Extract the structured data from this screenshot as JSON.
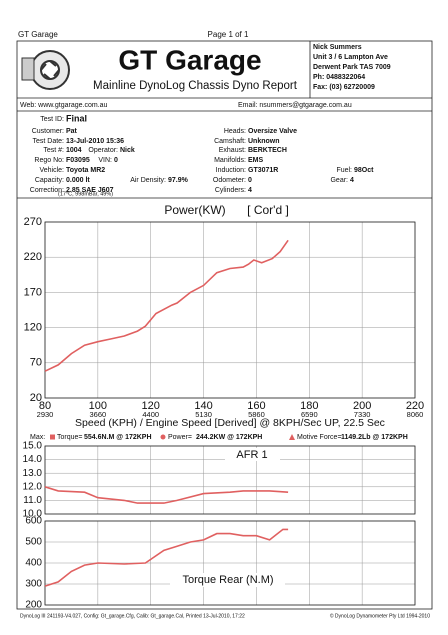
{
  "header": {
    "company": "GT Garage",
    "page": "Page 1 of 1",
    "title": "GT Garage",
    "subtitle": "Mainline DynoLog Chassis Dyno Report",
    "address": [
      "Nick Summers",
      "Unit 3 / 6 Lampton Ave",
      "Derwent Park TAS 7009",
      "Ph: 0488322064",
      "Fax: (03) 62720009"
    ],
    "web": "Web: www.gtgarage.com.au",
    "email": "Email: nsummers@gtgarage.com.au"
  },
  "info": [
    [
      "Test ID:",
      "Final"
    ],
    [
      "Customer:",
      "Pat"
    ],
    [
      "Test Date:",
      "13-Jul-2010 15:36"
    ],
    [
      "Test #:",
      "1004"
    ],
    [
      "Operator:",
      "Nick"
    ],
    [
      "Rego No:",
      "F03095"
    ],
    [
      "VIN:",
      "0"
    ],
    [
      "Vehicle:",
      "Toyota MR2"
    ],
    [
      "Capacity:",
      "0.000 lt"
    ],
    [
      "Air Density:",
      "97.9%"
    ],
    [
      "Correction:",
      "2.85 SAE J607"
    ],
    [
      "Heads:",
      "Oversize Valve"
    ],
    [
      "Camshaft:",
      "Unknown"
    ],
    [
      "Exhaust:",
      "BERKTECH"
    ],
    [
      "Manifolds:",
      "EMS"
    ],
    [
      "Induction:",
      "GT3071R"
    ],
    [
      "Odometer:",
      "0"
    ],
    [
      "Cylinders:",
      "4"
    ],
    [
      "Fuel:",
      "98Oct"
    ],
    [
      "Gear:",
      "4"
    ]
  ],
  "conditions": "(17°C, 998mBar, 49%)",
  "max": {
    "label": "Max:",
    "items": [
      {
        "name": "Torque=",
        "value": "554.6N.M @ 172KPH"
      },
      {
        "name": "Power=",
        "value": "244.2KW @ 172KPH"
      },
      {
        "name": "Motive Force=",
        "value": "1149.2Lb @ 172KPH"
      }
    ]
  },
  "chart_data": [
    {
      "type": "line",
      "title": "Power(KW)",
      "subtitle": "[ Cor'd ]",
      "x_label": "Speed (KPH) / Engine Speed [Derived] @ 8KPH/Sec UP, 22.5 Sec",
      "xlim": [
        80,
        220
      ],
      "xticks": [
        80,
        100,
        120,
        140,
        160,
        180,
        200,
        220
      ],
      "secondary_x_labels": [
        "2930",
        "3660",
        "4400",
        "5130",
        "5860",
        "6590",
        "7330",
        "8060"
      ],
      "ylim": [
        20,
        270
      ],
      "yticks": [
        20,
        70,
        120,
        170,
        220,
        270
      ],
      "grid": true,
      "x": [
        80,
        85,
        90,
        95,
        100,
        105,
        110,
        115,
        118,
        122,
        128,
        130,
        135,
        140,
        145,
        150,
        155,
        157,
        159,
        162,
        166,
        169,
        172
      ],
      "series": [
        {
          "name": "Power",
          "color": "#e06060",
          "values": [
            58,
            67,
            83,
            95,
            100,
            104,
            108,
            115,
            122,
            140,
            152,
            155,
            170,
            180,
            198,
            204,
            206,
            210,
            216,
            212,
            218,
            228,
            244
          ]
        }
      ]
    },
    {
      "type": "line",
      "title": "AFR 1",
      "xlim": [
        80,
        220
      ],
      "ylim": [
        10,
        15
      ],
      "yticks": [
        {
          "value": 10,
          "label": "10.0"
        },
        {
          "value": 11,
          "label": "11.0"
        },
        {
          "value": 12,
          "label": "12.0"
        },
        {
          "value": 13,
          "label": "13.0"
        },
        {
          "value": 14,
          "label": "14.0"
        },
        {
          "value": 15,
          "label": "15.0"
        }
      ],
      "grid": true,
      "x": [
        80,
        85,
        95,
        100,
        110,
        115,
        125,
        130,
        140,
        150,
        155,
        165,
        172
      ],
      "series": [
        {
          "name": "AFR 1",
          "color": "#e06060",
          "values": [
            12.0,
            11.7,
            11.6,
            11.2,
            11.0,
            10.8,
            10.8,
            11.0,
            11.5,
            11.6,
            11.7,
            11.7,
            11.6
          ]
        }
      ]
    },
    {
      "type": "line",
      "title": "Torque Rear (N.M)",
      "xlim": [
        80,
        220
      ],
      "ylim": [
        200,
        600
      ],
      "yticks": [
        200,
        300,
        400,
        500,
        600
      ],
      "grid": true,
      "x": [
        80,
        85,
        90,
        95,
        100,
        110,
        118,
        125,
        130,
        135,
        140,
        145,
        150,
        155,
        160,
        165,
        170,
        172
      ],
      "series": [
        {
          "name": "Torque Rear",
          "color": "#e06060",
          "values": [
            290,
            310,
            360,
            390,
            400,
            395,
            400,
            460,
            480,
            500,
            510,
            540,
            540,
            530,
            530,
            510,
            560,
            560
          ]
        }
      ]
    }
  ],
  "footer": {
    "left": "DynoLog III 241193-V4.027, Config: Gt_garage.Cfg, Calib: Gt_garage.Cal, Printed 13-Jul-2010, 17:22",
    "right": "© DynoLog Dynamometer Pty Ltd 1994-2010"
  }
}
